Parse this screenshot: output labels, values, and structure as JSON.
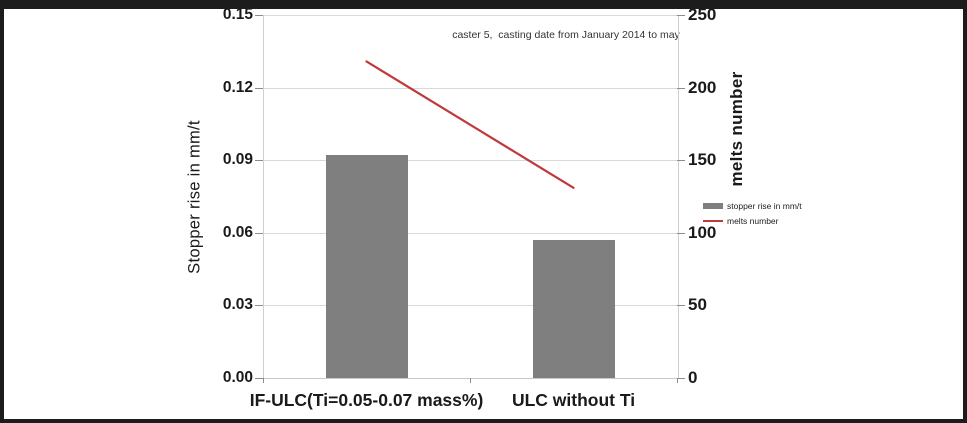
{
  "chart_data": {
    "type": "bar",
    "categories": [
      "IF-ULC(Ti=0.05-0.07 mass%)",
      "ULC without Ti"
    ],
    "series": [
      {
        "name": "stopper rise in mm/t",
        "type": "bar",
        "axis": "left",
        "values": [
          0.092,
          0.057
        ],
        "color": "#7f7f7f"
      },
      {
        "name": "melts number",
        "type": "line",
        "axis": "right",
        "values": [
          218,
          131
        ],
        "color": "#c0393b"
      }
    ],
    "left_axis": {
      "label": "Stopper rise in mm/t",
      "min": 0,
      "max": 0.15,
      "ticks": [
        "0.15",
        "0.12",
        "0.09",
        "0.06",
        "0.03",
        "0.00"
      ]
    },
    "right_axis": {
      "label": "melts number",
      "min": 0,
      "max": 250,
      "ticks": [
        "250",
        "200",
        "150",
        "100",
        "50",
        "0"
      ]
    },
    "annotation": "caster 5,  casting date from January 2014 to may",
    "legend": [
      {
        "label": "stopper rise in mm/t",
        "marker": "bar",
        "color": "#7f7f7f"
      },
      {
        "label": "melts number",
        "marker": "line",
        "color": "#c0393b"
      }
    ],
    "grid": true,
    "legend_position": "right-middle",
    "xlim_note": "two categories",
    "ylim_left": [
      0,
      0.15
    ],
    "ylim_right": [
      0,
      250
    ]
  },
  "colors": {
    "bar": "#7f7f7f",
    "line": "#c0393b",
    "gridline": "#d9d9d9",
    "frame": "#1c1c1c",
    "text": "#1a1a1a"
  }
}
